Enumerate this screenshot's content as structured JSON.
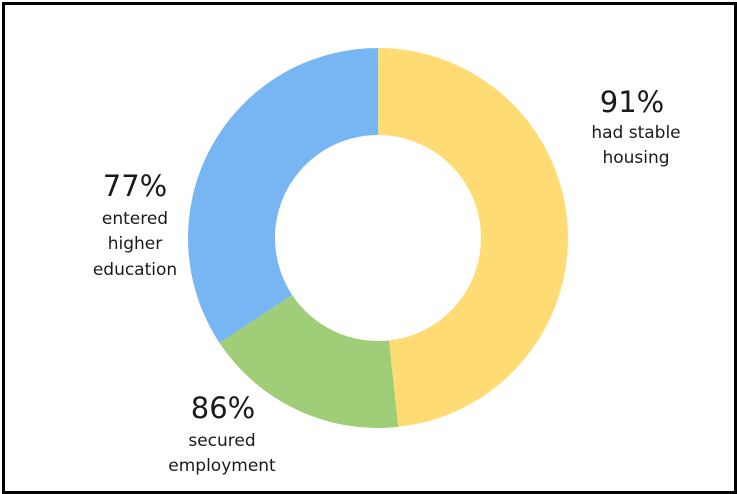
{
  "chart_data": {
    "type": "pie",
    "donut": true,
    "slices": [
      {
        "value": "91%",
        "label_lines": [
          "had stable",
          "housing"
        ],
        "color": "#FFDC73",
        "share": 0.483
      },
      {
        "value": "86%",
        "label_lines": [
          "secured",
          "employment"
        ],
        "color": "#A0CD78",
        "share": 0.174
      },
      {
        "value": "77%",
        "label_lines": [
          "entered",
          "higher",
          "education"
        ],
        "color": "#78B6F3",
        "share": 0.343
      }
    ],
    "legend": "none",
    "start_angle": "12 o'clock",
    "direction": "clockwise"
  }
}
